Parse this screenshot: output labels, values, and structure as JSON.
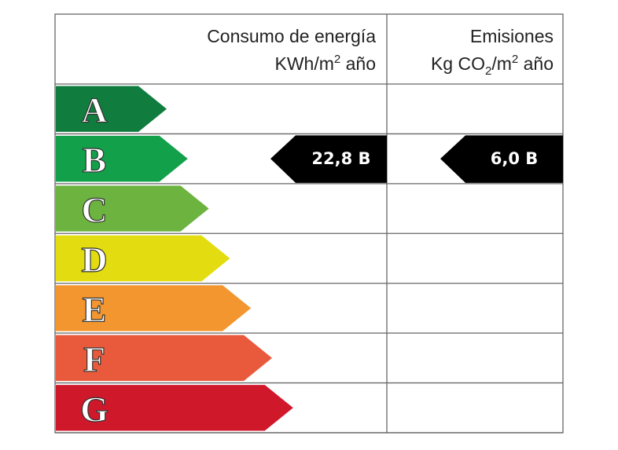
{
  "header": {
    "consumption": {
      "title": "Consumo de energía",
      "unit": [
        "KWh/m",
        "2",
        " año"
      ]
    },
    "emissions": {
      "title": "Emisiones",
      "unit": [
        "Kg CO",
        "2",
        "/m",
        "2",
        " año"
      ]
    }
  },
  "rows": [
    {
      "letter": "A",
      "color": "#107d3e"
    },
    {
      "letter": "B",
      "color": "#13a04a",
      "consumption": "22,8 B",
      "emissions": "6,0 B"
    },
    {
      "letter": "C",
      "color": "#6cb33f"
    },
    {
      "letter": "D",
      "color": "#e2dc10"
    },
    {
      "letter": "E",
      "color": "#f3962f"
    },
    {
      "letter": "F",
      "color": "#e95a3d"
    },
    {
      "letter": "G",
      "color": "#d0182b"
    }
  ]
}
